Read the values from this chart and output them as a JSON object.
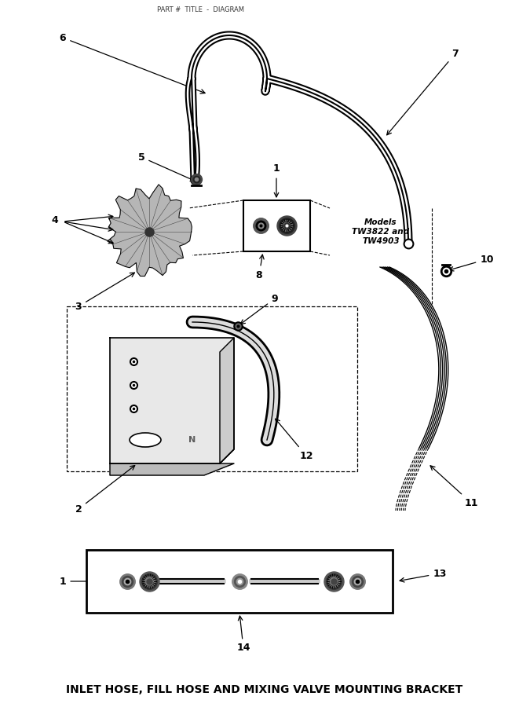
{
  "title_bottom": "INLET HOSE, FILL HOSE AND MIXING VALVE MOUNTING BRACKET",
  "bg_color": "#ffffff",
  "figure_width": 6.75,
  "figure_height": 9.0,
  "models_text": "Models\nTW3822 and\nTW4903"
}
